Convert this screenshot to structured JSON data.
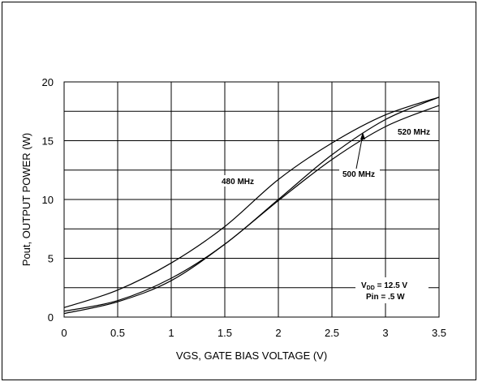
{
  "chart_data": {
    "type": "line",
    "title": "",
    "xlabel": "VGS, GATE BIAS VOLTAGE (V)",
    "ylabel": "Pout, OUTPUT POWER (W)",
    "xlim": [
      0,
      3.5
    ],
    "ylim": [
      0,
      20
    ],
    "grid": true,
    "x_ticks": [
      "0",
      "0.5",
      "1",
      "1.5",
      "2",
      "2.5",
      "3",
      "3.5"
    ],
    "y_ticks": [
      "0",
      "5",
      "10",
      "15",
      "20"
    ],
    "series": [
      {
        "name": "480 MHz",
        "x": [
          0,
          0.5,
          1,
          1.5,
          2,
          2.5,
          3,
          3.5
        ],
        "y": [
          0.8,
          2.3,
          4.6,
          7.7,
          11.7,
          14.8,
          17.2,
          18.7
        ]
      },
      {
        "name": "500 MHz",
        "x": [
          0,
          0.5,
          1,
          1.5,
          2,
          2.5,
          3,
          3.5
        ],
        "y": [
          0.5,
          1.4,
          3.3,
          6.2,
          10.0,
          13.8,
          16.8,
          18.7
        ]
      },
      {
        "name": "520 MHz",
        "x": [
          0,
          0.5,
          1,
          1.5,
          2,
          2.5,
          3,
          3.5
        ],
        "y": [
          0.3,
          1.3,
          3.1,
          6.2,
          9.9,
          13.4,
          16.2,
          18.0
        ]
      }
    ],
    "annotations": {
      "label_480": "480 MHz",
      "label_500": "500 MHz",
      "label_520": "520 MHz",
      "vdd_main": "V",
      "vdd_sub": "DD",
      "vdd_value": " = 12.5 V",
      "pin": "Pin = .5 W"
    }
  }
}
